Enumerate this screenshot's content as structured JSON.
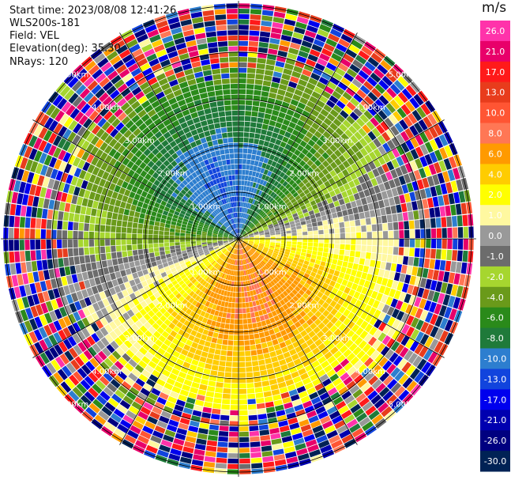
{
  "header": {
    "start_time": "Start time: 2023/08/08 12:41:26",
    "instrument": "WLS200s-181",
    "field": "Field: VEL",
    "elevation": "Elevation(deg): 35.30",
    "nrays": "NRays: 120"
  },
  "colorbar": {
    "unit": "m/s",
    "ticks": [
      "26.0",
      "21.0",
      "17.0",
      "13.0",
      "10.0",
      "8.0",
      "6.0",
      "4.0",
      "2.0",
      "1.0",
      "0.0",
      "-1.0",
      "-2.0",
      "-4.0",
      "-6.0",
      "-8.0",
      "-10.0",
      "-13.0",
      "-17.0",
      "-21.0",
      "-26.0",
      "-30.0"
    ],
    "colors": [
      "#ff33aa",
      "#e8006a",
      "#ff1a1a",
      "#e83c1c",
      "#ff5533",
      "#ff7755",
      "#ff9a00",
      "#ffcc00",
      "#ffff00",
      "#fff8a0",
      "#999999",
      "#6c6c6c",
      "#a6d62f",
      "#6a9a1a",
      "#2a8a1a",
      "#1f7a3a",
      "#2d7ecf",
      "#1144dd",
      "#0000ee",
      "#0000b0",
      "#000080",
      "#002255"
    ]
  },
  "chart_data": {
    "type": "heatmap",
    "subtype": "PPI radial velocity",
    "field": "VEL",
    "unit": "m/s",
    "nrays": 120,
    "range_ring_labels": [
      "1.00km",
      "2.00km",
      "3.00km",
      "4.00km",
      "5.00km"
    ],
    "range_rings_km": [
      1,
      2,
      3,
      4,
      5
    ],
    "max_range_km": 5.1,
    "wind_pattern": {
      "receding_max_mps": 8,
      "approaching_min_mps": -10,
      "receding_bearing_deg": 165,
      "noise_beyond_km": 3.4
    },
    "colorbar_range": [
      -30,
      26
    ]
  }
}
